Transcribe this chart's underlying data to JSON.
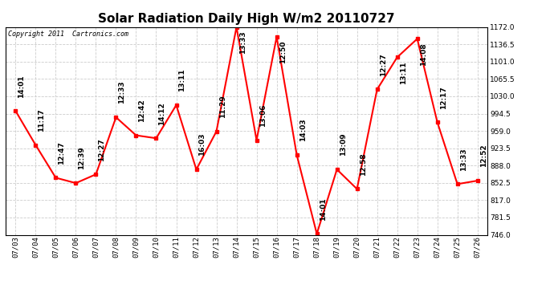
{
  "title": "Solar Radiation Daily High W/m2 20110727",
  "copyright": "Copyright 2011  Cartronics.com",
  "dates": [
    "07/03",
    "07/04",
    "07/05",
    "07/06",
    "07/07",
    "07/08",
    "07/09",
    "07/10",
    "07/11",
    "07/12",
    "07/13",
    "07/14",
    "07/15",
    "07/16",
    "07/17",
    "07/18",
    "07/19",
    "07/20",
    "07/21",
    "07/22",
    "07/23",
    "07/24",
    "07/25",
    "07/26"
  ],
  "values": [
    1000,
    930,
    863,
    852,
    870,
    987,
    950,
    944,
    1012,
    880,
    958,
    1172,
    940,
    1152,
    910,
    748,
    880,
    840,
    1044,
    1110,
    1148,
    977,
    850,
    857
  ],
  "times": [
    "14:01",
    "11:17",
    "12:47",
    "12:39",
    "12:27",
    "12:33",
    "12:42",
    "14:12",
    "13:11",
    "16:03",
    "11:29",
    "13:33",
    "13:06",
    "12:50",
    "14:03",
    "14:01",
    "13:09",
    "12:58",
    "12:27",
    "13:11",
    "14:08",
    "12:17",
    "13:33",
    "12:52"
  ],
  "line_color": "#ff0000",
  "marker_color": "#ff0000",
  "bg_color": "#ffffff",
  "grid_color": "#cccccc",
  "title_fontsize": 11,
  "label_fontsize": 6.5,
  "time_fontsize": 6.5,
  "ylim": [
    746.0,
    1172.0
  ],
  "yticks": [
    746.0,
    781.5,
    817.0,
    852.5,
    888.0,
    923.5,
    959.0,
    994.5,
    1030.0,
    1065.5,
    1101.0,
    1136.5,
    1172.0
  ]
}
